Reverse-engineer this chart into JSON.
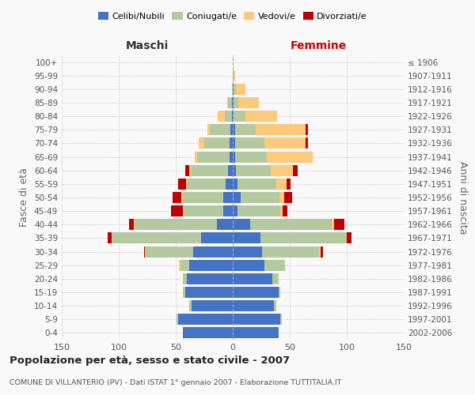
{
  "age_groups": [
    "100+",
    "95-99",
    "90-94",
    "85-89",
    "80-84",
    "75-79",
    "70-74",
    "65-69",
    "60-64",
    "55-59",
    "50-54",
    "45-49",
    "40-44",
    "35-39",
    "30-34",
    "25-29",
    "20-24",
    "15-19",
    "10-14",
    "5-9",
    "0-4"
  ],
  "birth_years": [
    "≤ 1906",
    "1907-1911",
    "1912-1916",
    "1917-1921",
    "1922-1926",
    "1927-1931",
    "1932-1936",
    "1937-1941",
    "1942-1946",
    "1947-1951",
    "1952-1956",
    "1957-1961",
    "1962-1966",
    "1967-1971",
    "1972-1976",
    "1977-1981",
    "1982-1986",
    "1987-1991",
    "1992-1996",
    "1997-2001",
    "2002-2006"
  ],
  "maschi_celibi": [
    0,
    0,
    0,
    1,
    1,
    2,
    3,
    3,
    4,
    6,
    8,
    8,
    14,
    28,
    35,
    38,
    40,
    42,
    36,
    48,
    44
  ],
  "maschi_coniugati": [
    0,
    0,
    1,
    3,
    6,
    18,
    22,
    28,
    32,
    34,
    36,
    36,
    72,
    78,
    42,
    8,
    4,
    2,
    2,
    1,
    0
  ],
  "maschi_vedovi": [
    0,
    0,
    0,
    1,
    6,
    2,
    5,
    2,
    2,
    1,
    1,
    0,
    1,
    0,
    0,
    1,
    0,
    0,
    0,
    0,
    0
  ],
  "maschi_divorziati": [
    0,
    0,
    0,
    0,
    0,
    0,
    0,
    0,
    4,
    7,
    8,
    10,
    4,
    4,
    1,
    0,
    0,
    0,
    0,
    0,
    0
  ],
  "femmine_nubili": [
    0,
    0,
    1,
    1,
    1,
    2,
    2,
    2,
    3,
    4,
    7,
    4,
    15,
    24,
    26,
    28,
    35,
    40,
    36,
    42,
    40
  ],
  "femmine_coniugate": [
    0,
    0,
    2,
    4,
    10,
    18,
    26,
    28,
    30,
    34,
    34,
    38,
    72,
    76,
    50,
    18,
    5,
    2,
    2,
    1,
    0
  ],
  "femmine_vedove": [
    0,
    2,
    8,
    18,
    28,
    44,
    36,
    40,
    20,
    9,
    4,
    2,
    2,
    0,
    1,
    0,
    0,
    0,
    0,
    0,
    0
  ],
  "femmine_divorziate": [
    0,
    0,
    0,
    0,
    0,
    2,
    2,
    0,
    4,
    4,
    7,
    4,
    9,
    4,
    2,
    0,
    0,
    0,
    0,
    0,
    0
  ],
  "colors": {
    "celibi": "#4472c4",
    "coniugati": "#b5c9a0",
    "vedovi": "#fdc97a",
    "divorziati": "#c00000"
  },
  "title": "Popolazione per età, sesso e stato civile - 2007",
  "subtitle": "COMUNE DI VILLANTERIO (PV) - Dati ISTAT 1° gennaio 2007 - Elaborazione TUTTITALIA.IT",
  "header_maschi": "Maschi",
  "header_femmine": "Femmine",
  "ylabel_left": "Fasce di età",
  "ylabel_right": "Anni di nascita",
  "xlim": 150,
  "legend_labels": [
    "Celibi/Nubili",
    "Coniugati/e",
    "Vedovi/e",
    "Divorziati/e"
  ],
  "background_color": "#f9f9f9",
  "grid_color": "#cccccc"
}
